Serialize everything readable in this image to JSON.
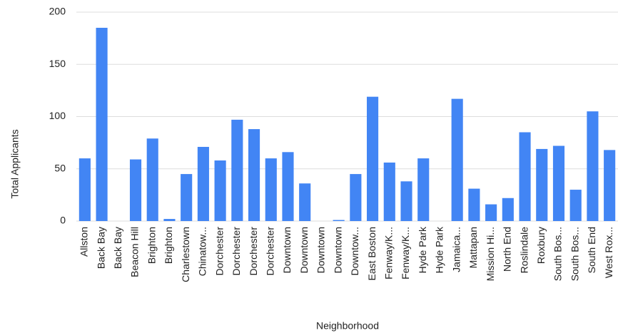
{
  "chart_data": {
    "type": "bar",
    "categories": [
      "Allston",
      "Back Bay",
      "Back Bay",
      "Beacon Hill",
      "Brighton",
      "Brighton",
      "Charlestown",
      "Chinatow...",
      "Dorchester",
      "Dorchester",
      "Dorchester",
      "Dorchester",
      "Downtown",
      "Downtown",
      "Downtown",
      "Downtown",
      "Downtow...",
      "East Boston",
      "Fenway/K...",
      "Fenway/K...",
      "Hyde Park",
      "Hyde Park",
      "Jamaica...",
      "Mattapan",
      "Mission Hi...",
      "North End",
      "Roslindale",
      "Roxbury",
      "South Bos...",
      "South Bos...",
      "South End",
      "West Rox..."
    ],
    "values": [
      60,
      185,
      0,
      59,
      79,
      2,
      45,
      71,
      58,
      97,
      88,
      60,
      66,
      36,
      0,
      1,
      45,
      119,
      56,
      38,
      60,
      0,
      117,
      31,
      16,
      22,
      85,
      69,
      72,
      30,
      105,
      68
    ],
    "color": "#4285f4",
    "x_label": "Neighborhood",
    "y_label": "Total Applicants",
    "ylim": [
      0,
      200
    ],
    "yticks": [
      0,
      50,
      100,
      150,
      200
    ],
    "grid": true
  }
}
